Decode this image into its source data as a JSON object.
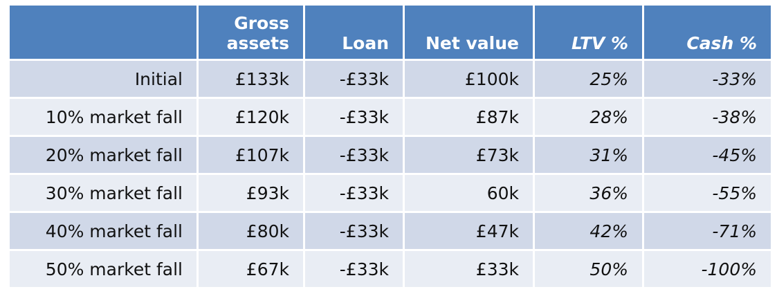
{
  "table": {
    "header": [
      "",
      "Gross assets",
      "Loan",
      "Net value",
      "LTV %",
      "Cash %"
    ],
    "rows": [
      [
        "Initial",
        "£133k",
        "-£33k",
        "£100k",
        "25%",
        "-33%"
      ],
      [
        "10% market fall",
        "£120k",
        "-£33k",
        "£87k",
        "28%",
        "-38%"
      ],
      [
        "20% market fall",
        "£107k",
        "-£33k",
        "£73k",
        "31%",
        "-45%"
      ],
      [
        "30% market fall",
        "£93k",
        "-£33k",
        "60k",
        "36%",
        "-55%"
      ],
      [
        "40% market fall",
        "£80k",
        "-£33k",
        "£47k",
        "42%",
        "-71%"
      ],
      [
        "50% market fall",
        "£67k",
        "-£33k",
        "£33k",
        "50%",
        "-100%"
      ]
    ]
  }
}
